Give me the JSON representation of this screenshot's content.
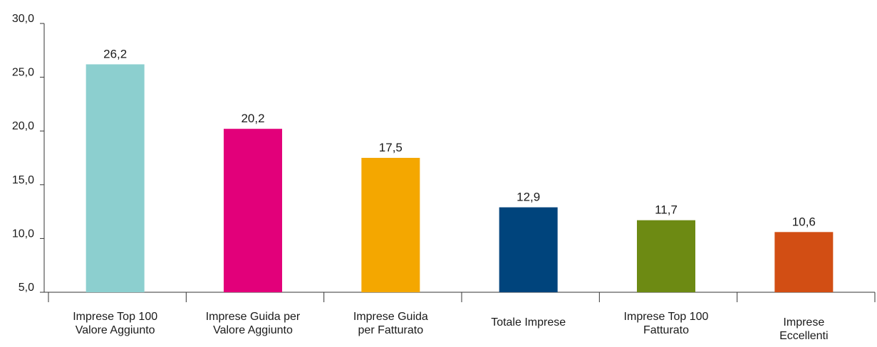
{
  "chart_data": {
    "type": "bar",
    "title": "",
    "xlabel": "",
    "ylabel": "",
    "ylim": [
      5.0,
      30.0
    ],
    "yticks": [
      "5,0",
      "10,0",
      "15,0",
      "20,0",
      "25,0",
      "30,0"
    ],
    "ytick_values": [
      5,
      10,
      15,
      20,
      25,
      30
    ],
    "grid": false,
    "categories": [
      [
        "Imprese Top 100",
        "Valore Aggiunto"
      ],
      [
        "Imprese Guida per",
        "Valore Aggiunto"
      ],
      [
        "Imprese Guida",
        "per Fatturato"
      ],
      [
        "Totale Imprese"
      ],
      [
        "Imprese Top 100",
        "Fatturato"
      ],
      [
        "Imprese",
        "Eccellenti"
      ]
    ],
    "values": [
      26.2,
      20.2,
      17.5,
      12.9,
      11.7,
      10.6
    ],
    "value_labels": [
      "26,2",
      "20,2",
      "17,5",
      "12,9",
      "11,7",
      "10,6"
    ],
    "colors": [
      "#8ccfcf",
      "#e2007a",
      "#f4a700",
      "#00447c",
      "#6d8a13",
      "#d24e14"
    ]
  }
}
